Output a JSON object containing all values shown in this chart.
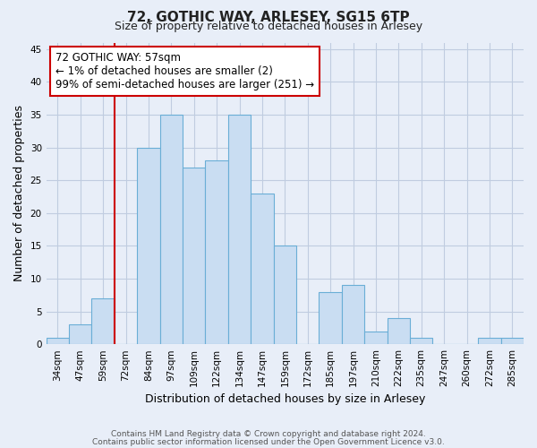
{
  "title": "72, GOTHIC WAY, ARLESEY, SG15 6TP",
  "subtitle": "Size of property relative to detached houses in Arlesey",
  "xlabel": "Distribution of detached houses by size in Arlesey",
  "ylabel": "Number of detached properties",
  "bar_labels": [
    "34sqm",
    "47sqm",
    "59sqm",
    "72sqm",
    "84sqm",
    "97sqm",
    "109sqm",
    "122sqm",
    "134sqm",
    "147sqm",
    "159sqm",
    "172sqm",
    "185sqm",
    "197sqm",
    "210sqm",
    "222sqm",
    "235sqm",
    "247sqm",
    "260sqm",
    "272sqm",
    "285sqm"
  ],
  "bar_values": [
    1,
    3,
    7,
    0,
    30,
    35,
    27,
    28,
    35,
    23,
    15,
    0,
    8,
    9,
    2,
    4,
    1,
    0,
    0,
    1,
    1
  ],
  "bar_color": "#c9ddf2",
  "bar_edge_color": "#6aaed6",
  "vline_x_index": 2,
  "vline_color": "#cc0000",
  "annotation_text": "72 GOTHIC WAY: 57sqm\n← 1% of detached houses are smaller (2)\n99% of semi-detached houses are larger (251) →",
  "annotation_box_edge": "#cc0000",
  "ylim": [
    0,
    46
  ],
  "yticks": [
    0,
    5,
    10,
    15,
    20,
    25,
    30,
    35,
    40,
    45
  ],
  "footer1": "Contains HM Land Registry data © Crown copyright and database right 2024.",
  "footer2": "Contains public sector information licensed under the Open Government Licence v3.0.",
  "bg_color": "#e8eef8",
  "plot_bg_color": "#e8eef8",
  "grid_color": "#c0cce0",
  "title_fontsize": 11,
  "subtitle_fontsize": 9,
  "axis_label_fontsize": 9,
  "tick_fontsize": 7.5,
  "footer_fontsize": 6.5
}
